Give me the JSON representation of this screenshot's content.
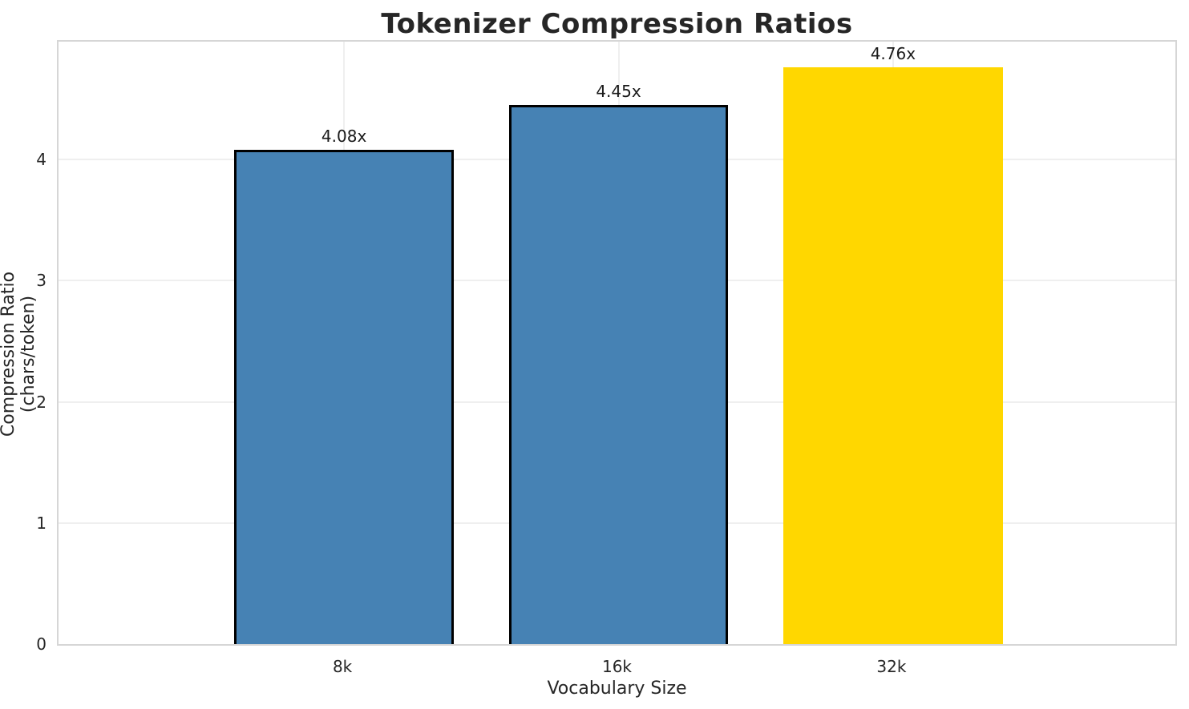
{
  "chart_data": {
    "type": "bar",
    "title": "Tokenizer Compression Ratios",
    "xlabel": "Vocabulary Size",
    "ylabel": "Compression Ratio (chars/token)",
    "categories": [
      "8k",
      "16k",
      "32k"
    ],
    "values": [
      4.08,
      4.45,
      4.76
    ],
    "value_labels": [
      "4.08x",
      "4.45x",
      "4.76x"
    ],
    "bar_colors": [
      "#4682B4",
      "#4682B4",
      "#FFD700"
    ],
    "bar_edge_colors": [
      "#000000",
      "#000000",
      null
    ],
    "ylim": [
      0,
      5
    ],
    "yticks": [
      0,
      1,
      2,
      3,
      4
    ],
    "grid": "both",
    "gridline_color": "#efefef",
    "spine_color": "#d6d6d6",
    "background_color": "#ffffff",
    "legend_position": "none"
  }
}
